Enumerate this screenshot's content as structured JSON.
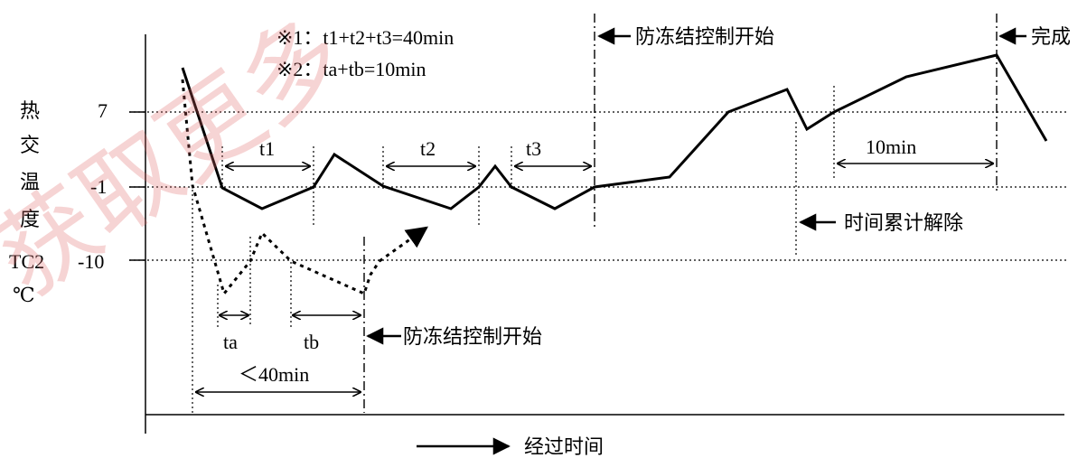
{
  "colors": {
    "line": "#000000",
    "watermark": "#e06666"
  },
  "watermark": {
    "text": "获取更多"
  },
  "notes": [
    "※1：t1+t2+t3=40min",
    "※2：ta+tb=10min"
  ],
  "y_axis": {
    "label_chars": [
      "热",
      "交",
      "温",
      "度",
      "TC2",
      "℃"
    ],
    "ticks": [
      "7",
      "-1",
      "-10"
    ]
  },
  "x_axis": {
    "label": "经过时间"
  },
  "intervals": {
    "t1": "t1",
    "t2": "t2",
    "t3": "t3",
    "ta": "ta",
    "tb": "tb",
    "lt40": "＜40min",
    "ten_min": "10min"
  },
  "annotations": {
    "defrost_start_top": "防冻结控制开始",
    "done": "完成",
    "accum_reset": "时间累计解除",
    "defrost_start_bottom": "防冻结控制开始"
  }
}
